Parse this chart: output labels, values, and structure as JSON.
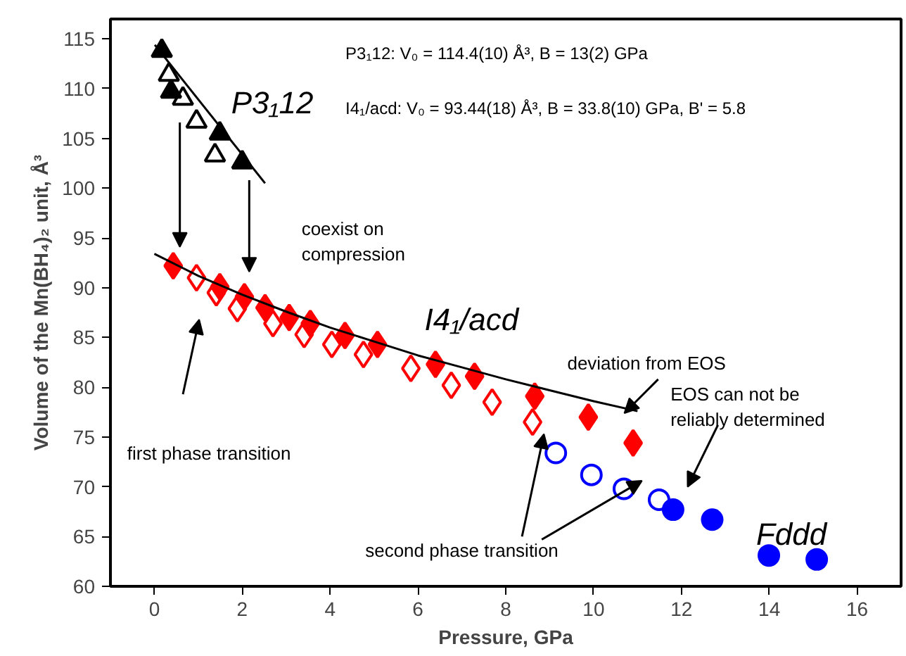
{
  "chart_data": {
    "type": "scatter",
    "xlabel": "Pressure, GPa",
    "ylabel": "Volume of the Mn(BH₄)₂ unit, Å³",
    "xlim": [
      -1,
      17
    ],
    "ylim": [
      60,
      117
    ],
    "xticks": [
      0,
      2,
      4,
      6,
      8,
      10,
      12,
      14,
      16
    ],
    "yticks": [
      60,
      65,
      70,
      75,
      80,
      85,
      90,
      95,
      100,
      105,
      110,
      115
    ],
    "series": [
      {
        "marker": "triangle",
        "color": "#000000",
        "x": [
          0.17,
          0.38,
          1.49,
          2.0
        ],
        "values": [
          113.8,
          109.7,
          105.5,
          102.6
        ]
      },
      {
        "marker": "triangle",
        "color": "#000000",
        "x": [
          0.33,
          0.65,
          0.96,
          1.38
        ],
        "values": [
          111.4,
          109.0,
          106.7,
          103.3
        ]
      },
      {
        "marker": "diamond",
        "color": "#ff0000",
        "x": [
          0.43,
          1.49,
          2.05,
          2.52,
          3.07,
          3.55,
          4.34,
          5.08,
          6.4,
          7.29,
          8.66,
          9.88,
          10.9
        ],
        "values": [
          92.2,
          90.1,
          89.1,
          88.0,
          87.0,
          86.4,
          85.2,
          84.3,
          82.3,
          81.1,
          79.1,
          77.0,
          74.4
        ]
      },
      {
        "marker": "diamond",
        "color": "#ff0000",
        "x": [
          0.96,
          1.41,
          1.89,
          2.7,
          3.41,
          4.04,
          4.76,
          5.84,
          6.76,
          7.69,
          8.61
        ],
        "values": [
          91.0,
          89.5,
          87.9,
          86.4,
          85.3,
          84.3,
          83.3,
          81.9,
          80.2,
          78.5,
          76.5
        ]
      },
      {
        "marker": "circle",
        "color": "#0000ff",
        "x": [
          9.14,
          9.95,
          10.69,
          11.49
        ],
        "values": [
          73.4,
          71.2,
          69.8,
          68.7
        ]
      },
      {
        "marker": "circle",
        "color": "#0000ff",
        "x": [
          11.81,
          12.7,
          13.99,
          15.08
        ],
        "values": [
          67.7,
          66.7,
          63.1,
          62.7
        ]
      },
      {
        "type": "line",
        "color": "#000000",
        "x": [
          0.01,
          2.52
        ],
        "values": [
          114.4,
          100.5
        ]
      },
      {
        "type": "line",
        "color": "#000000",
        "x": [
          0,
          1,
          2,
          3,
          4,
          5,
          6,
          7,
          8,
          9,
          10,
          11
        ],
        "values": [
          93.4,
          91.2,
          89.3,
          87.6,
          86.0,
          84.6,
          83.2,
          82.0,
          80.8,
          79.7,
          78.6,
          77.6
        ]
      }
    ],
    "annotations": [
      "P3₁12: V₀ = 114.4(10) Å³, B = 13(2) GPa",
      "I4₁/acd: V₀ = 93.44(18) Å³, B = 33.8(10) GPa, B' = 5.8",
      "P3₁12",
      "coexist  on\ncompression",
      "I4₁/acd",
      {
        "text": "deviation from EOS",
        "x": 10.7,
        "y": 77.4
      },
      "EOS can not be\nreliably determined",
      "first phase transition",
      "second phase transition",
      "Fddd"
    ]
  }
}
